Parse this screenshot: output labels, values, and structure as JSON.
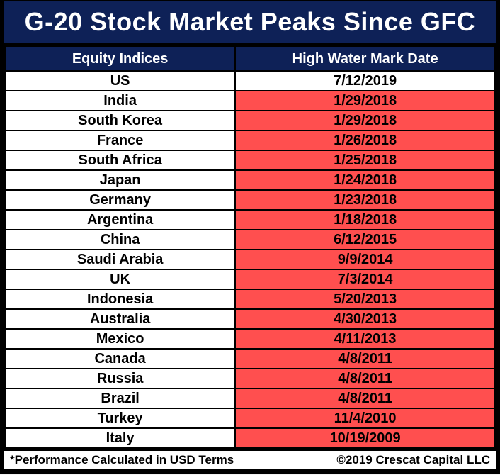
{
  "title": "G-20 Stock Market Peaks Since GFC",
  "table": {
    "columns": [
      "Equity Indices",
      "High Water Mark Date"
    ],
    "rows": [
      {
        "index": "US",
        "date": "7/12/2019",
        "date_highlight": false
      },
      {
        "index": "India",
        "date": "1/29/2018",
        "date_highlight": true
      },
      {
        "index": "South Korea",
        "date": "1/29/2018",
        "date_highlight": true
      },
      {
        "index": "France",
        "date": "1/26/2018",
        "date_highlight": true
      },
      {
        "index": "South Africa",
        "date": "1/25/2018",
        "date_highlight": true
      },
      {
        "index": "Japan",
        "date": "1/24/2018",
        "date_highlight": true
      },
      {
        "index": "Germany",
        "date": "1/23/2018",
        "date_highlight": true
      },
      {
        "index": "Argentina",
        "date": "1/18/2018",
        "date_highlight": true
      },
      {
        "index": "China",
        "date": "6/12/2015",
        "date_highlight": true
      },
      {
        "index": "Saudi Arabia",
        "date": "9/9/2014",
        "date_highlight": true
      },
      {
        "index": "UK",
        "date": "7/3/2014",
        "date_highlight": true
      },
      {
        "index": "Indonesia",
        "date": "5/20/2013",
        "date_highlight": true
      },
      {
        "index": "Australia",
        "date": "4/30/2013",
        "date_highlight": true
      },
      {
        "index": "Mexico",
        "date": "4/11/2013",
        "date_highlight": true
      },
      {
        "index": "Canada",
        "date": "4/8/2011",
        "date_highlight": true
      },
      {
        "index": "Russia",
        "date": "4/8/2011",
        "date_highlight": true
      },
      {
        "index": "Brazil",
        "date": "4/8/2011",
        "date_highlight": true
      },
      {
        "index": "Turkey",
        "date": "11/4/2010",
        "date_highlight": true
      },
      {
        "index": "Italy",
        "date": "10/19/2009",
        "date_highlight": true
      }
    ]
  },
  "footer": {
    "note": "*Performance Calculated in USD Terms",
    "copyright": "©2019 Crescat Capital LLC"
  },
  "colors": {
    "navy": "#0e2157",
    "red": "#ff4f4f",
    "border": "#000000",
    "white": "#ffffff"
  }
}
